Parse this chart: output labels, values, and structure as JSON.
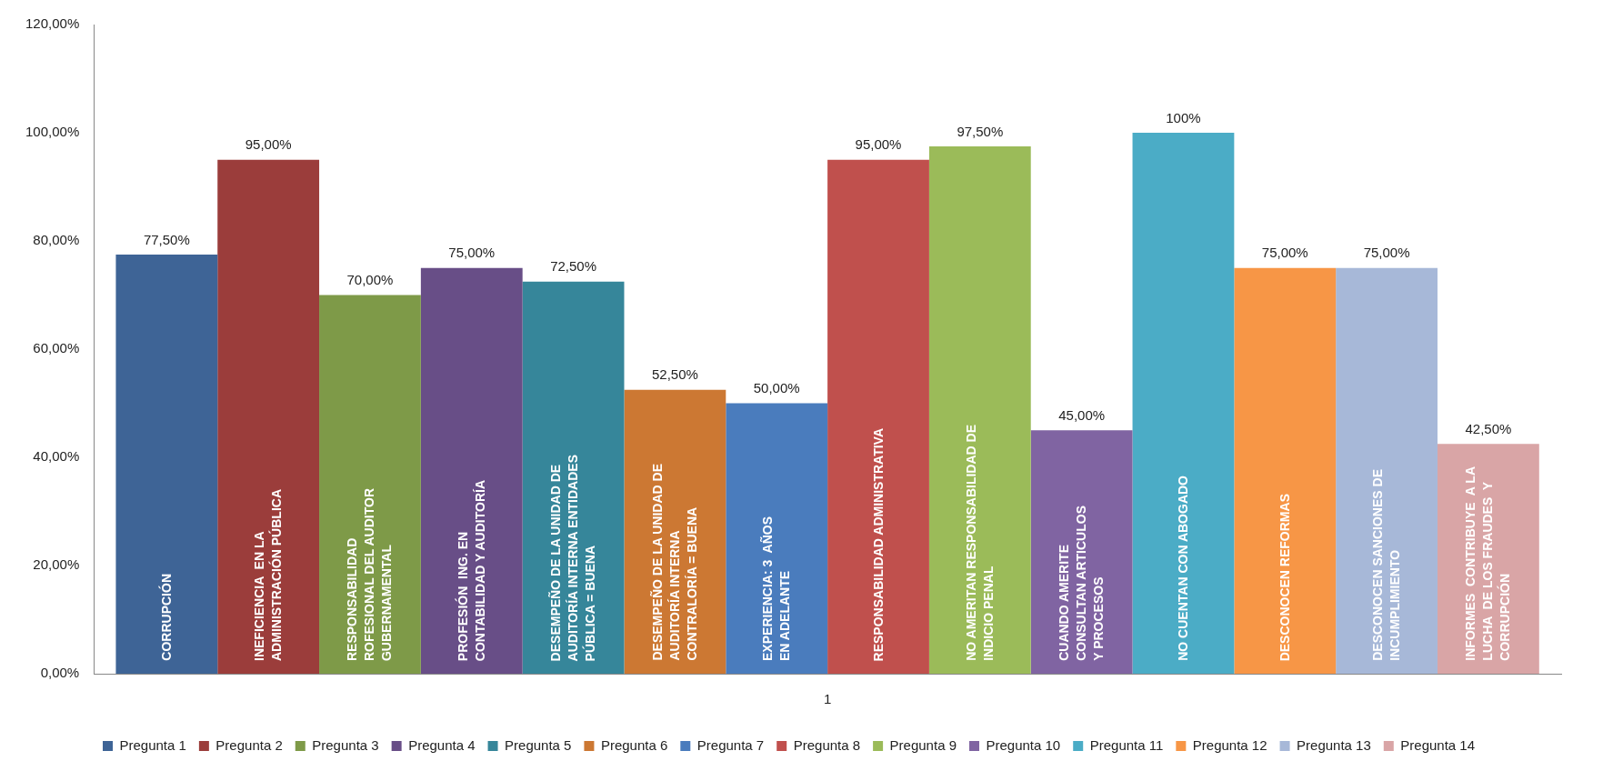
{
  "chart_data": {
    "type": "bar",
    "categories": [
      "1"
    ],
    "grid": false,
    "legend": "bottom",
    "ylim": [
      0,
      120
    ],
    "yticks": [
      {
        "value": 0,
        "label": "0,00%"
      },
      {
        "value": 20,
        "label": "20,00%"
      },
      {
        "value": 40,
        "label": "40,00%"
      },
      {
        "value": 60,
        "label": "60,00%"
      },
      {
        "value": 80,
        "label": "80,00%"
      },
      {
        "value": 100,
        "label": "100,00%"
      },
      {
        "value": 120,
        "label": "120,00%"
      }
    ],
    "series": [
      {
        "name": "Pregunta 1",
        "color": "#3e6496",
        "values": [
          77.5
        ],
        "value_labels": [
          "77,50%"
        ]
      },
      {
        "name": "Pregunta 2",
        "color": "#9b3d3b",
        "values": [
          95
        ],
        "value_labels": [
          "95,00%"
        ]
      },
      {
        "name": "Pregunta 3",
        "color": "#7e9a48",
        "values": [
          70
        ],
        "value_labels": [
          "70,00%"
        ]
      },
      {
        "name": "Pregunta 4",
        "color": "#684e87",
        "values": [
          75
        ],
        "value_labels": [
          "75,00%"
        ]
      },
      {
        "name": "Pregunta 5",
        "color": "#36869a",
        "values": [
          72.5
        ],
        "value_labels": [
          "72,50%"
        ]
      },
      {
        "name": "Pregunta 6",
        "color": "#cc7833",
        "values": [
          52.5
        ],
        "value_labels": [
          "52,50%"
        ]
      },
      {
        "name": "Pregunta 7",
        "color": "#4a7cbd",
        "values": [
          50
        ],
        "value_labels": [
          "50,00%"
        ]
      },
      {
        "name": "Pregunta 8",
        "color": "#c0504d",
        "values": [
          95
        ],
        "value_labels": [
          "95,00%"
        ]
      },
      {
        "name": "Pregunta 9",
        "color": "#9bbb59",
        "values": [
          97.5
        ],
        "value_labels": [
          "97,50%"
        ]
      },
      {
        "name": "Pregunta 10",
        "color": "#8064a2",
        "values": [
          45
        ],
        "value_labels": [
          "45,00%"
        ]
      },
      {
        "name": "Pregunta 11",
        "color": "#4bacc6",
        "values": [
          100
        ],
        "value_labels": [
          "100%"
        ]
      },
      {
        "name": "Pregunta 12",
        "color": "#f79646",
        "values": [
          75
        ],
        "value_labels": [
          "75,00%"
        ]
      },
      {
        "name": "Pregunta 13",
        "color": "#a7b8d8",
        "values": [
          75
        ],
        "value_labels": [
          "75,00%"
        ]
      },
      {
        "name": "Pregunta 14",
        "color": "#d9a5a6",
        "values": [
          42.5
        ],
        "value_labels": [
          "42,50%"
        ]
      }
    ],
    "annotations": [
      "CORRUPCIÓN",
      "INEFICIENCIA  EN LA\nADMINISTRACIÓN PÚBLICA",
      "RESPONSABILIDAD\nROFESIONAL DEL AUDITOR\nGUBERNAMENTAL",
      "PROFESIÓN  ING. EN\nCONTABILIDAD Y AUDITORÍA",
      "DESEMPEÑO DE LA UNIDAD DE\nAUDITORÍA INTERNA ENTIDADES\nPÚBLICA = BUENA",
      "DESEMPEÑO DE LA UNIDAD DE\nAUDITORÍA INTERNA\nCONTRALORÍA = BUENA",
      "EXPERIENCIA: 3  AÑOS\nEN ADELANTE",
      "RESPONSABILIDAD ADMINISTRATIVA",
      "NO AMERITAN RESPONSABILIDAD DE\nINDICIO PENAL",
      "CUANDO AMERITE\nCONSULTAN ARTICULOS\nY PROCESOS",
      "NO CUENTAN CON ABOGADO",
      "DESCONOCEN REFORMAS",
      "DESCONOCEN SANCIONES DE\nINCUMPLIMIENTO",
      "INFORMES  CONTRIBUYE  A LA\nLUCHA  DE LOS FRAUDES  Y\nCORRUPCIÓN"
    ]
  }
}
